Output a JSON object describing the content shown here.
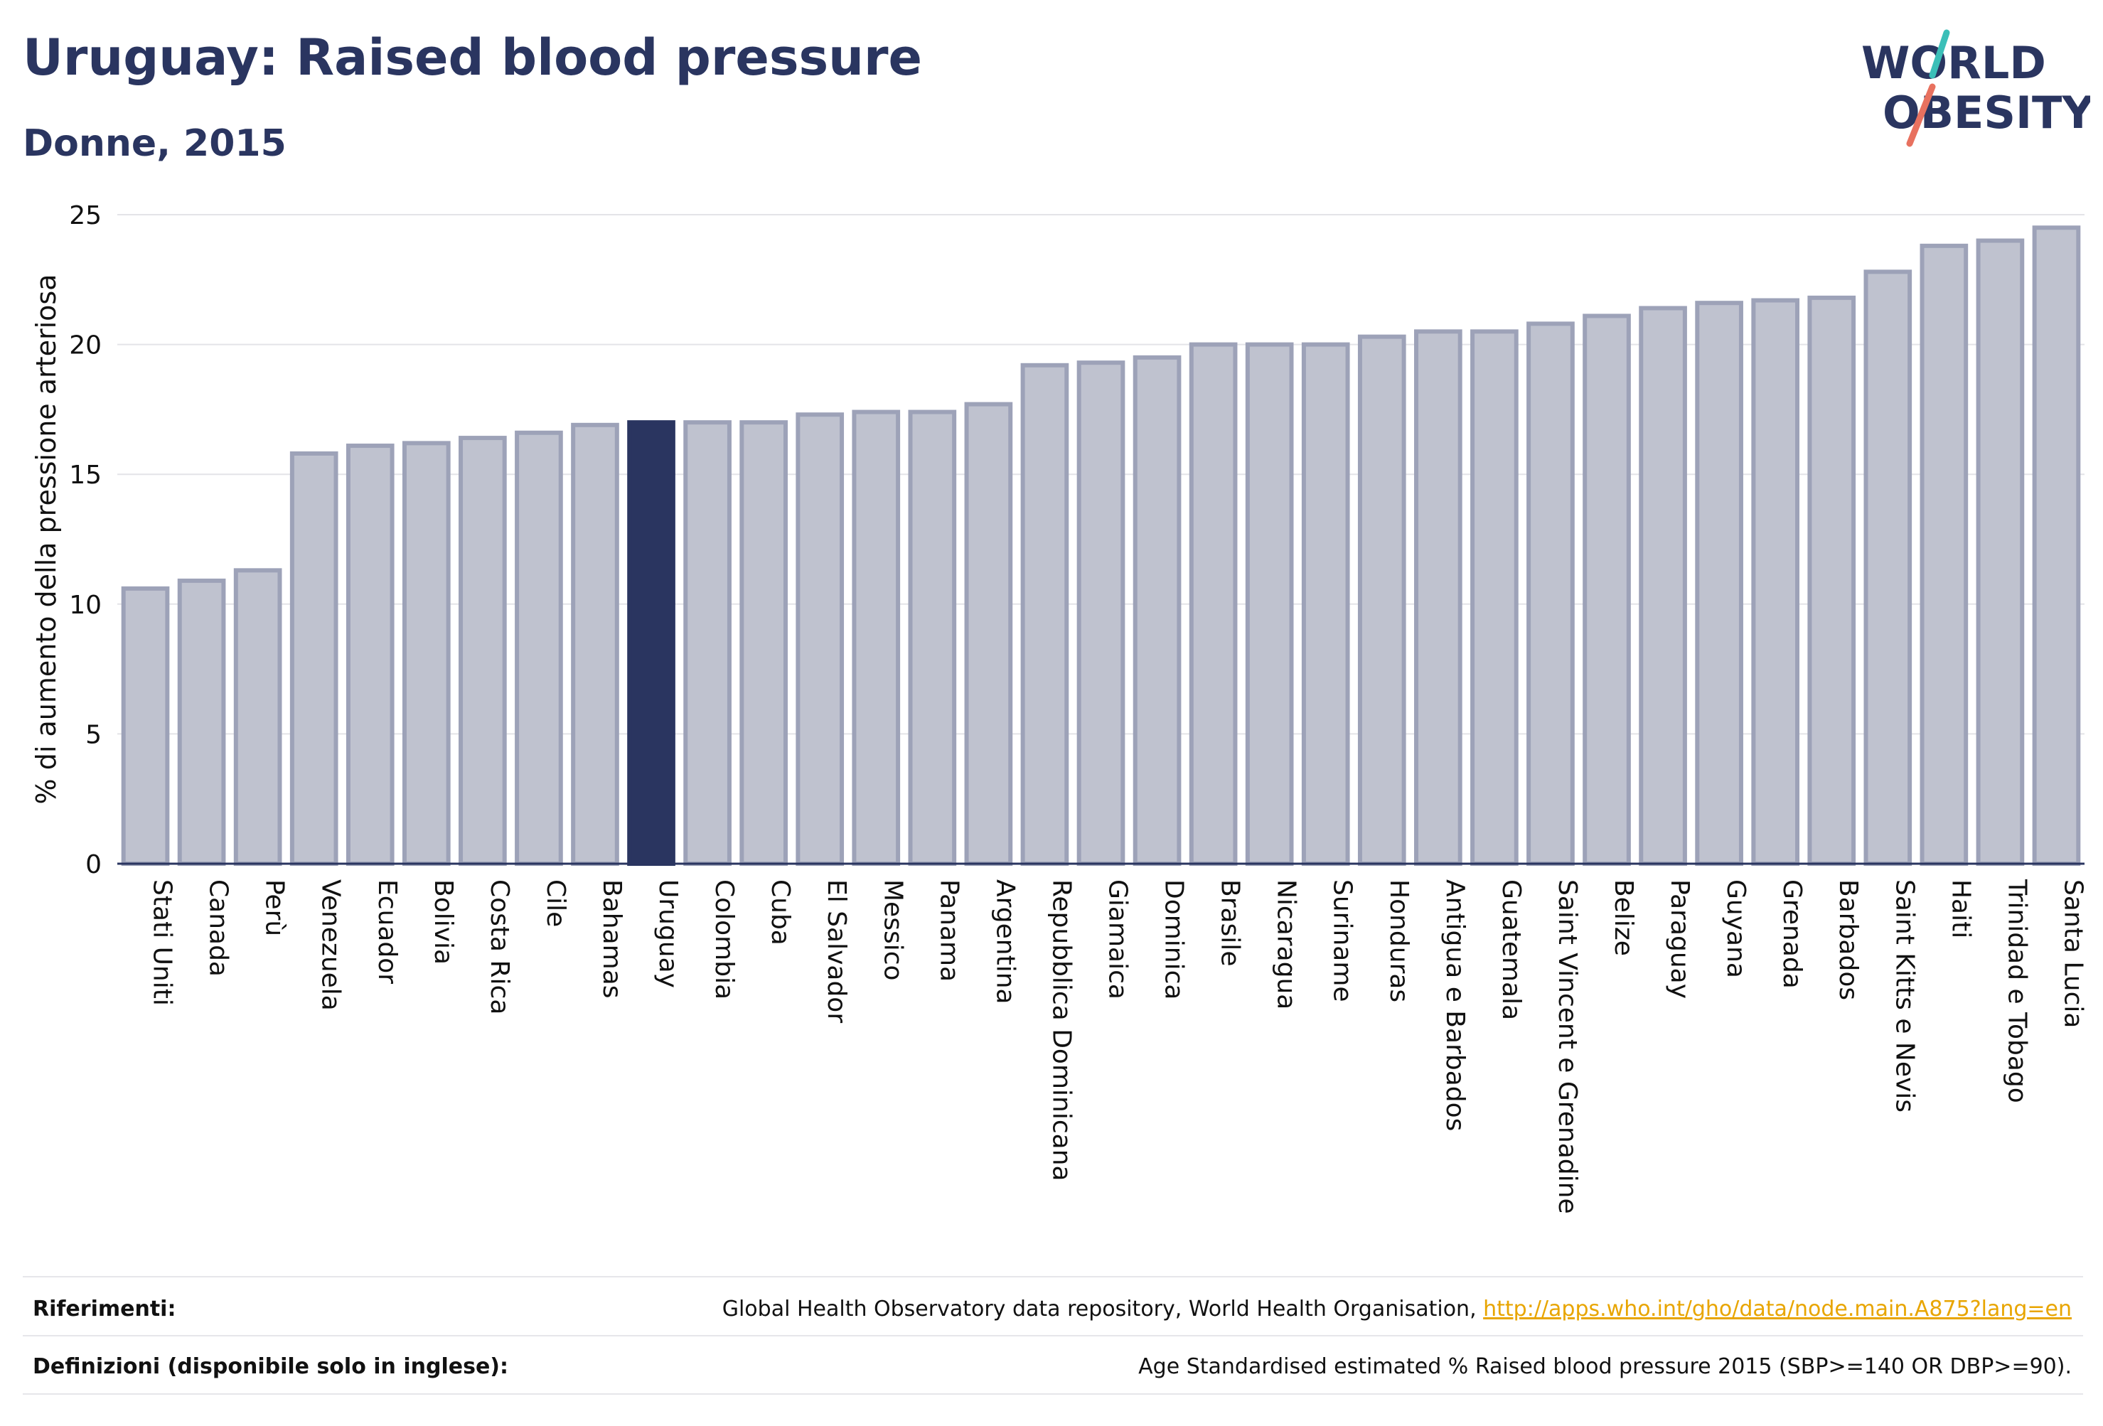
{
  "header": {
    "title": "Uruguay: Raised blood pressure",
    "subtitle": "Donne, 2015"
  },
  "logo": {
    "line1": "WORLD",
    "line2": "OBESITY"
  },
  "colors": {
    "bar": "#bfc2cf",
    "bar_stroke": "#9da2b8",
    "highlight": "#2a3560",
    "axis": "#2a3560",
    "grid": "#e4e4e8",
    "text": "#2a3560",
    "link": "#e8a500"
  },
  "chart_data": {
    "type": "bar",
    "ylabel": "% di aumento della pressione arteriosa",
    "ylim": [
      0,
      25
    ],
    "yticks": [
      0,
      5,
      10,
      15,
      20,
      25
    ],
    "grid": true,
    "highlight": "Uruguay",
    "categories": [
      "Stati Uniti",
      "Canada",
      "Perù",
      "Venezuela",
      "Ecuador",
      "Bolivia",
      "Costa Rica",
      "Cile",
      "Bahamas",
      "Uruguay",
      "Colombia",
      "Cuba",
      "El Salvador",
      "Messico",
      "Panama",
      "Argentina",
      "Repubblica Dominicana",
      "Giamaica",
      "Dominica",
      "Brasile",
      "Nicaragua",
      "Suriname",
      "Honduras",
      "Antigua e Barbados",
      "Guatemala",
      "Saint Vincent e Grenadine",
      "Belize",
      "Paraguay",
      "Guyana",
      "Grenada",
      "Barbados",
      "Saint Kitts e Nevis",
      "Haiti",
      "Trinidad e Tobago",
      "Santa Lucia"
    ],
    "values": [
      10.6,
      10.9,
      11.3,
      15.8,
      16.1,
      16.2,
      16.4,
      16.6,
      16.9,
      17.0,
      17.0,
      17.0,
      17.3,
      17.4,
      17.4,
      17.7,
      19.2,
      19.3,
      19.5,
      20.0,
      20.0,
      20.0,
      20.3,
      20.5,
      20.5,
      20.8,
      21.1,
      21.4,
      21.6,
      21.7,
      21.8,
      22.8,
      23.8,
      24.0,
      24.5
    ]
  },
  "footer": {
    "references_label": "Riferimenti:",
    "references_text": "Global Health Observatory data repository, World Health Organisation, ",
    "references_link": "http://apps.who.int/gho/data/node.main.A875?lang=en",
    "definitions_label": "Definizioni (disponibile solo in inglese):",
    "definitions_text": "Age Standardised estimated % Raised blood pressure 2015 (SBP>=140 OR DBP>=90)."
  }
}
